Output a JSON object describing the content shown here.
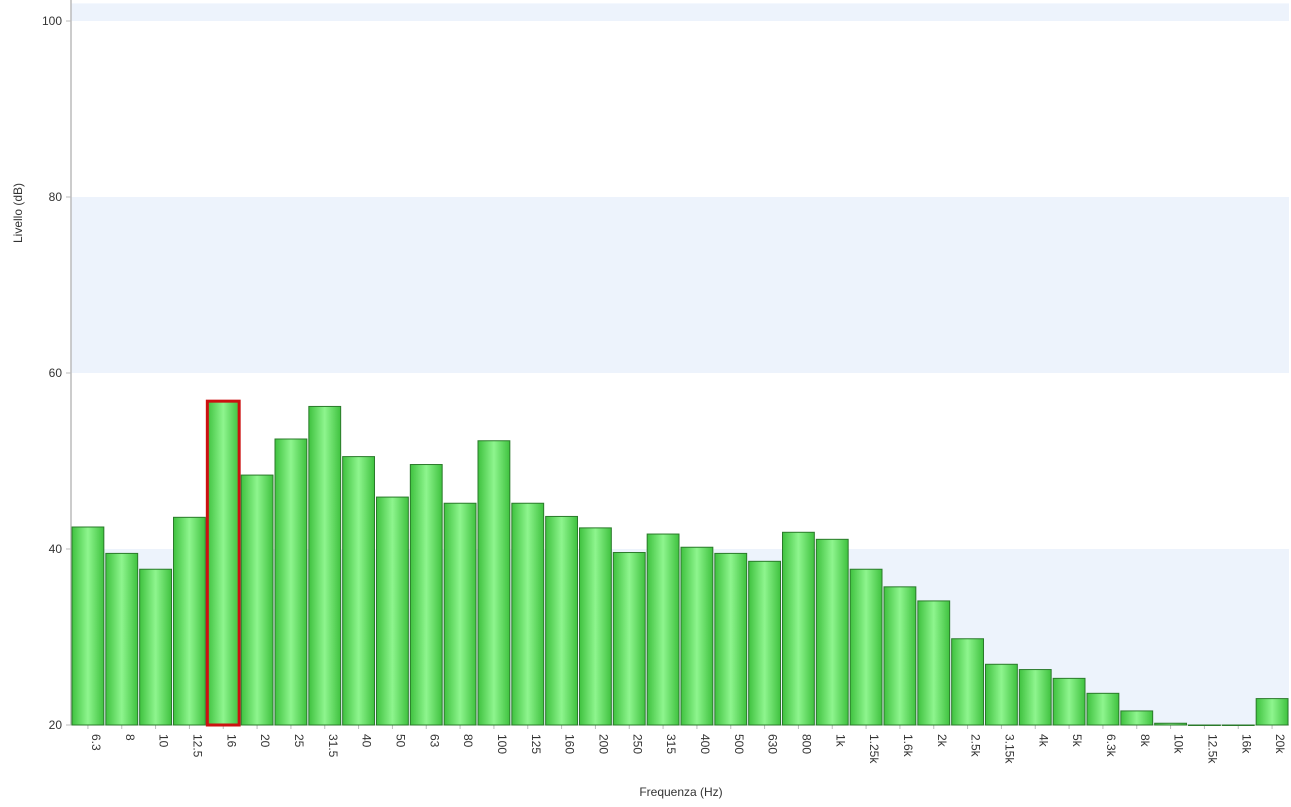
{
  "chart_data": {
    "type": "bar",
    "title": "",
    "xlabel": "Frequenza (Hz)",
    "ylabel": "Livello (dB)",
    "ylim": [
      20,
      102
    ],
    "yticks": [
      20,
      40,
      60,
      80,
      100
    ],
    "grid": "horizontal bands",
    "legend": "none",
    "categories": [
      "6.3",
      "8",
      "10",
      "12.5",
      "16",
      "20",
      "25",
      "31.5",
      "40",
      "50",
      "63",
      "80",
      "100",
      "125",
      "160",
      "200",
      "250",
      "315",
      "400",
      "500",
      "630",
      "800",
      "1k",
      "1.25k",
      "1.6k",
      "2k",
      "2.5k",
      "3.15k",
      "4k",
      "5k",
      "6.3k",
      "8k",
      "10k",
      "12.5k",
      "16k",
      "20k"
    ],
    "values": [
      42.5,
      39.5,
      37.7,
      43.6,
      56.8,
      48.4,
      52.5,
      56.2,
      50.5,
      45.9,
      49.6,
      45.2,
      52.3,
      45.2,
      43.7,
      42.4,
      39.6,
      41.7,
      40.2,
      39.5,
      38.6,
      41.9,
      41.1,
      37.7,
      35.7,
      34.1,
      29.8,
      26.9,
      26.3,
      25.3,
      23.6,
      21.6,
      20.2,
      20.0,
      20.0,
      23.0
    ],
    "highlighted_category": "16",
    "colors": {
      "bar": "#66dd66",
      "bar_highlight": "#99f099",
      "bar_outline": "#2a7a2a",
      "highlight_outline": "#cc1111",
      "band": "#edf3fc",
      "axis": "#bbbbbb"
    }
  }
}
